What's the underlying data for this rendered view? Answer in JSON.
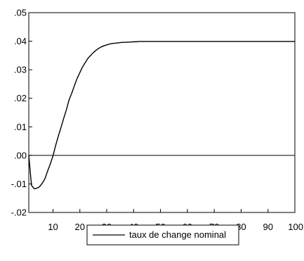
{
  "chart_data": {
    "type": "line",
    "title": "",
    "xlabel": "",
    "ylabel": "",
    "xlim": [
      1,
      100
    ],
    "ylim": [
      -0.02,
      0.05
    ],
    "x_ticks": [
      10,
      20,
      30,
      40,
      50,
      60,
      70,
      80,
      90,
      100
    ],
    "x_tick_labels": [
      "10",
      "20",
      "30",
      "40",
      "50",
      "60",
      "70",
      "80",
      "90",
      "100"
    ],
    "y_ticks": [
      -0.02,
      -0.01,
      0.0,
      0.01,
      0.02,
      0.03,
      0.04,
      0.05
    ],
    "y_tick_labels": [
      "-.02",
      "-.01",
      ".00",
      ".01",
      ".02",
      ".03",
      ".04",
      ".05"
    ],
    "zero_line": true,
    "grid": false,
    "legend_position": "bottom-center",
    "legend_label": "taux de change nominal",
    "series": [
      {
        "name": "taux de change nominal",
        "color": "#000000",
        "x": [
          1,
          2,
          3,
          4,
          5,
          6,
          7,
          8,
          9,
          10,
          11,
          12,
          13,
          14,
          15,
          16,
          17,
          18,
          19,
          20,
          21,
          22,
          23,
          24,
          25,
          26,
          27,
          28,
          29,
          30,
          31,
          32,
          33,
          34,
          35,
          36,
          37,
          38,
          39,
          40,
          41,
          42,
          45,
          50,
          60,
          70,
          80,
          90,
          100
        ],
        "y": [
          0.0,
          -0.0105,
          -0.0117,
          -0.0115,
          -0.011,
          -0.0098,
          -0.0082,
          -0.0055,
          -0.003,
          -0.0002,
          0.0035,
          0.0068,
          0.0098,
          0.013,
          0.016,
          0.0195,
          0.0218,
          0.0245,
          0.027,
          0.029,
          0.031,
          0.0325,
          0.034,
          0.035,
          0.036,
          0.0368,
          0.0375,
          0.038,
          0.0384,
          0.0387,
          0.039,
          0.0392,
          0.0393,
          0.0394,
          0.0395,
          0.0396,
          0.0396,
          0.0397,
          0.0397,
          0.0398,
          0.0398,
          0.0399,
          0.0399,
          0.0399,
          0.0399,
          0.0399,
          0.0399,
          0.0399,
          0.0399
        ]
      }
    ]
  }
}
